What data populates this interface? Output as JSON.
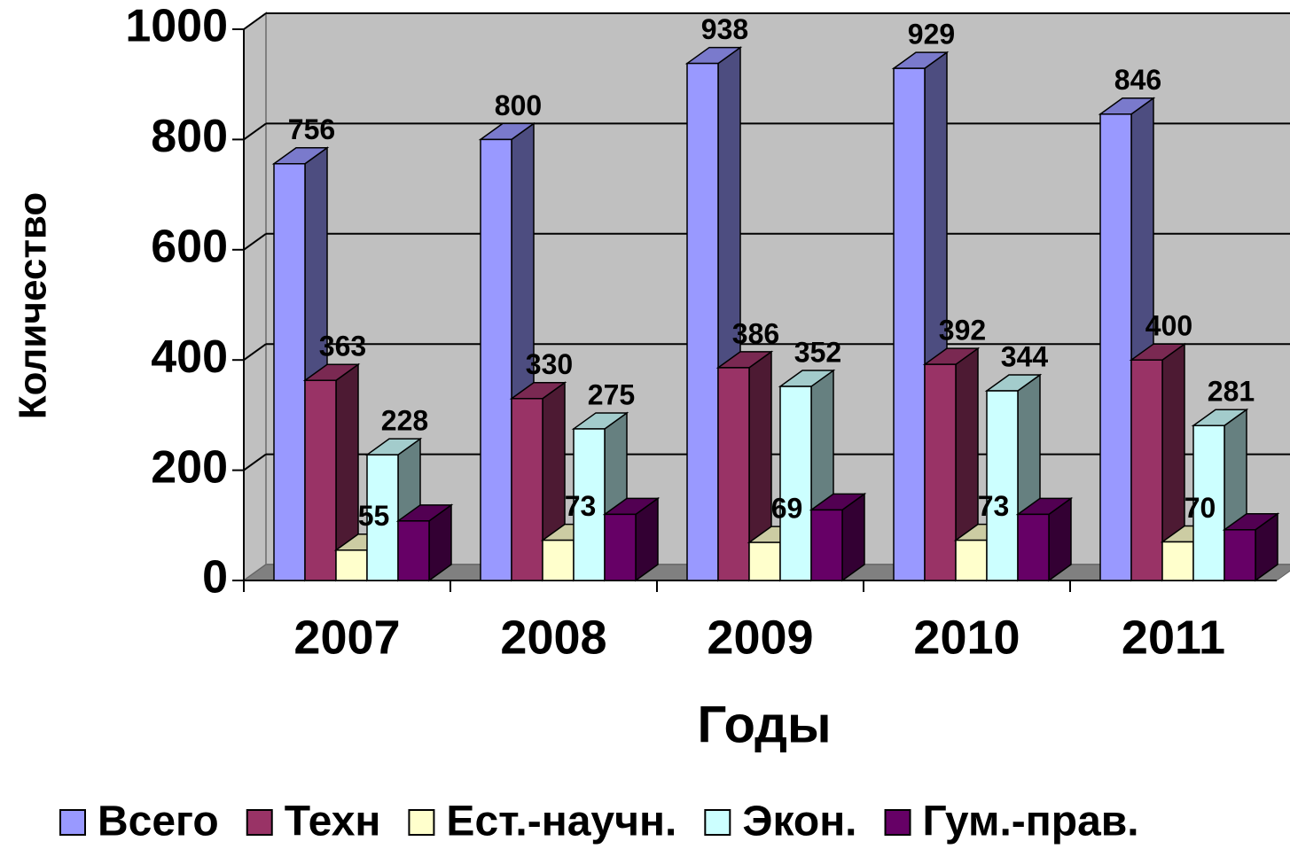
{
  "chart_data": {
    "type": "bar3d",
    "y_label": "Количество",
    "x_label": "Годы",
    "categories": [
      "2007",
      "2008",
      "2009",
      "2010",
      "2011"
    ],
    "series": [
      {
        "name": "Всего",
        "color": "#9999ff",
        "values": [
          756,
          800,
          938,
          929,
          846
        ]
      },
      {
        "name": "Техн",
        "color": "#993366",
        "values": [
          363,
          330,
          386,
          392,
          400
        ]
      },
      {
        "name": "Ест.-научн.",
        "color": "#ffffcc",
        "values": [
          55,
          73,
          69,
          73,
          70
        ]
      },
      {
        "name": "Экон.",
        "color": "#ccffff",
        "values": [
          228,
          275,
          352,
          344,
          281
        ]
      },
      {
        "name": "Гум.-прав.",
        "color": "#660066",
        "values": [
          108,
          120,
          128,
          120,
          92
        ]
      }
    ],
    "labeled_series": [
      0,
      1,
      2,
      3
    ],
    "ylim": [
      0,
      1000
    ],
    "yticks": [
      0,
      200,
      400,
      600,
      800,
      1000
    ],
    "grid": true
  }
}
